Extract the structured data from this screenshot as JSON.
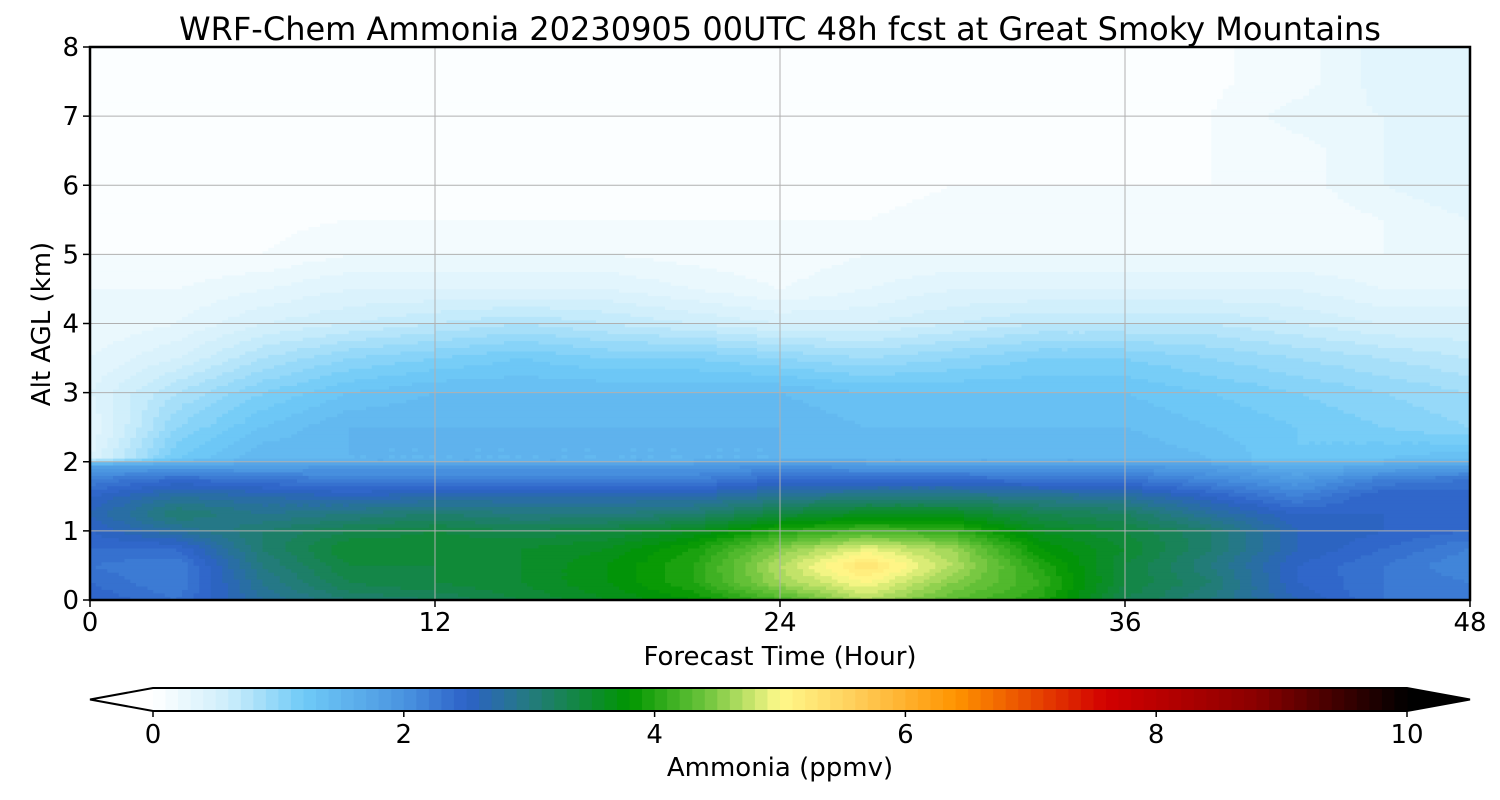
{
  "chart_data": {
    "type": "heatmap",
    "title": "WRF-Chem Ammonia  20230905 00UTC 48h fcst at Great Smoky Mountains",
    "xlabel": "Forecast Time (Hour)",
    "ylabel": "Alt AGL (km)",
    "xlim": [
      0,
      48
    ],
    "ylim": [
      0,
      8
    ],
    "x_ticks": [
      0,
      12,
      24,
      36,
      48
    ],
    "y_ticks": [
      0,
      1,
      2,
      3,
      4,
      5,
      6,
      7,
      8
    ],
    "grid": true,
    "x": [
      0,
      3,
      6,
      9,
      12,
      15,
      18,
      21,
      24,
      27,
      30,
      33,
      36,
      39,
      42,
      45,
      48
    ],
    "y": [
      0,
      0.25,
      0.5,
      0.75,
      1,
      1.25,
      1.5,
      1.75,
      1.95,
      2.05,
      2.5,
      3,
      3.5,
      4,
      4.5,
      5,
      5.5,
      6,
      6.5,
      7,
      7.5,
      8
    ],
    "z": [
      [
        2.5,
        2.3,
        2.8,
        3.1,
        3.2,
        3.4,
        3.6,
        3.8,
        4.2,
        4.7,
        4.3,
        4.0,
        3.3,
        3.0,
        2.6,
        2.3,
        2.2
      ],
      [
        2.4,
        2.2,
        2.9,
        3.3,
        3.4,
        3.5,
        3.7,
        4.0,
        4.6,
        5.0,
        4.5,
        4.1,
        3.4,
        3.1,
        2.5,
        2.3,
        2.2
      ],
      [
        2.3,
        2.2,
        3.0,
        3.4,
        3.4,
        3.5,
        3.7,
        4.0,
        4.7,
        5.3,
        4.7,
        4.0,
        3.4,
        3.0,
        2.5,
        2.3,
        2.1
      ],
      [
        2.4,
        2.4,
        3.1,
        3.5,
        3.5,
        3.5,
        3.6,
        3.9,
        4.5,
        4.9,
        4.6,
        3.8,
        3.5,
        3.1,
        2.6,
        2.4,
        2.2
      ],
      [
        2.5,
        2.8,
        3.1,
        3.3,
        3.4,
        3.3,
        3.4,
        3.6,
        4.0,
        4.2,
        4.1,
        3.6,
        3.4,
        3.1,
        2.6,
        2.5,
        2.4
      ],
      [
        2.6,
        3.1,
        2.9,
        3.0,
        3.1,
        3.0,
        3.0,
        3.1,
        3.4,
        3.6,
        3.6,
        3.3,
        3.2,
        2.8,
        2.5,
        2.5,
        2.4
      ],
      [
        2.5,
        2.8,
        2.7,
        2.6,
        2.7,
        2.7,
        2.7,
        2.7,
        2.9,
        3.0,
        3.0,
        2.9,
        2.8,
        2.5,
        2.2,
        2.5,
        2.5
      ],
      [
        2.2,
        2.4,
        2.3,
        2.2,
        2.2,
        2.2,
        2.2,
        2.2,
        2.4,
        2.4,
        2.4,
        2.3,
        2.3,
        2.1,
        1.9,
        2.2,
        2.3
      ],
      [
        1.8,
        1.8,
        1.8,
        1.9,
        1.9,
        1.9,
        1.9,
        1.9,
        2.0,
        1.9,
        1.9,
        1.9,
        1.9,
        1.8,
        1.6,
        1.7,
        1.8
      ],
      [
        0.4,
        1.2,
        1.5,
        1.5,
        1.5,
        1.5,
        1.5,
        1.5,
        1.5,
        1.5,
        1.5,
        1.5,
        1.5,
        1.4,
        1.2,
        1.3,
        1.4
      ],
      [
        0.3,
        1.0,
        1.3,
        1.5,
        1.5,
        1.5,
        1.5,
        1.5,
        1.5,
        1.4,
        1.4,
        1.4,
        1.4,
        1.3,
        1.2,
        1.1,
        1.0
      ],
      [
        0.4,
        0.8,
        1.1,
        1.3,
        1.4,
        1.4,
        1.4,
        1.4,
        1.4,
        1.3,
        1.3,
        1.3,
        1.3,
        1.2,
        1.1,
        1.0,
        0.9
      ],
      [
        0.3,
        0.5,
        0.8,
        1.0,
        1.1,
        1.2,
        1.1,
        1.1,
        1.0,
        0.9,
        1.0,
        1.1,
        1.1,
        1.0,
        0.9,
        0.8,
        0.7
      ],
      [
        0.2,
        0.3,
        0.5,
        0.6,
        0.7,
        0.8,
        0.7,
        0.6,
        0.5,
        0.5,
        0.6,
        0.7,
        0.7,
        0.7,
        0.6,
        0.5,
        0.5
      ],
      [
        0.2,
        0.2,
        0.3,
        0.4,
        0.4,
        0.4,
        0.4,
        0.3,
        0.2,
        0.3,
        0.4,
        0.4,
        0.4,
        0.4,
        0.4,
        0.3,
        0.3
      ],
      [
        0.1,
        0.1,
        0.1,
        0.2,
        0.2,
        0.2,
        0.2,
        0.15,
        0.12,
        0.2,
        0.2,
        0.2,
        0.2,
        0.2,
        0.2,
        0.2,
        0.2
      ],
      [
        0.05,
        0.05,
        0.06,
        0.1,
        0.1,
        0.1,
        0.1,
        0.1,
        0.1,
        0.1,
        0.12,
        0.12,
        0.12,
        0.1,
        0.12,
        0.2,
        0.3
      ],
      [
        0.04,
        0.04,
        0.05,
        0.05,
        0.05,
        0.05,
        0.05,
        0.05,
        0.05,
        0.08,
        0.1,
        0.1,
        0.1,
        0.1,
        0.15,
        0.3,
        0.4
      ],
      [
        0.04,
        0.04,
        0.04,
        0.04,
        0.04,
        0.04,
        0.04,
        0.04,
        0.04,
        0.05,
        0.06,
        0.07,
        0.08,
        0.1,
        0.15,
        0.3,
        0.4
      ],
      [
        0.04,
        0.04,
        0.04,
        0.04,
        0.04,
        0.04,
        0.04,
        0.04,
        0.04,
        0.04,
        0.05,
        0.05,
        0.07,
        0.1,
        0.25,
        0.3,
        0.4
      ],
      [
        0.04,
        0.04,
        0.04,
        0.04,
        0.04,
        0.04,
        0.04,
        0.04,
        0.04,
        0.04,
        0.04,
        0.05,
        0.06,
        0.08,
        0.15,
        0.35,
        0.4
      ],
      [
        0.04,
        0.04,
        0.04,
        0.04,
        0.04,
        0.04,
        0.04,
        0.04,
        0.04,
        0.04,
        0.04,
        0.04,
        0.05,
        0.08,
        0.15,
        0.35,
        0.35
      ]
    ],
    "colorbar": {
      "label": "Ammonia  (ppmv)",
      "range": [
        0,
        10
      ],
      "ticks": [
        0,
        2,
        4,
        6,
        8,
        10
      ],
      "extend": "both",
      "stops": [
        {
          "v": 0,
          "c": "#ffffff"
        },
        {
          "v": 0.6,
          "c": "#cdeefb"
        },
        {
          "v": 1.2,
          "c": "#6fcaf7"
        },
        {
          "v": 2.0,
          "c": "#4a94e0"
        },
        {
          "v": 2.5,
          "c": "#2d62c8"
        },
        {
          "v": 3.0,
          "c": "#247a80"
        },
        {
          "v": 3.8,
          "c": "#009600"
        },
        {
          "v": 4.4,
          "c": "#6cc43c"
        },
        {
          "v": 5.0,
          "c": "#fff98a"
        },
        {
          "v": 5.6,
          "c": "#ffce5a"
        },
        {
          "v": 6.4,
          "c": "#ff9400"
        },
        {
          "v": 7.6,
          "c": "#d20000"
        },
        {
          "v": 8.8,
          "c": "#8a0000"
        },
        {
          "v": 10,
          "c": "#000000"
        }
      ]
    }
  }
}
